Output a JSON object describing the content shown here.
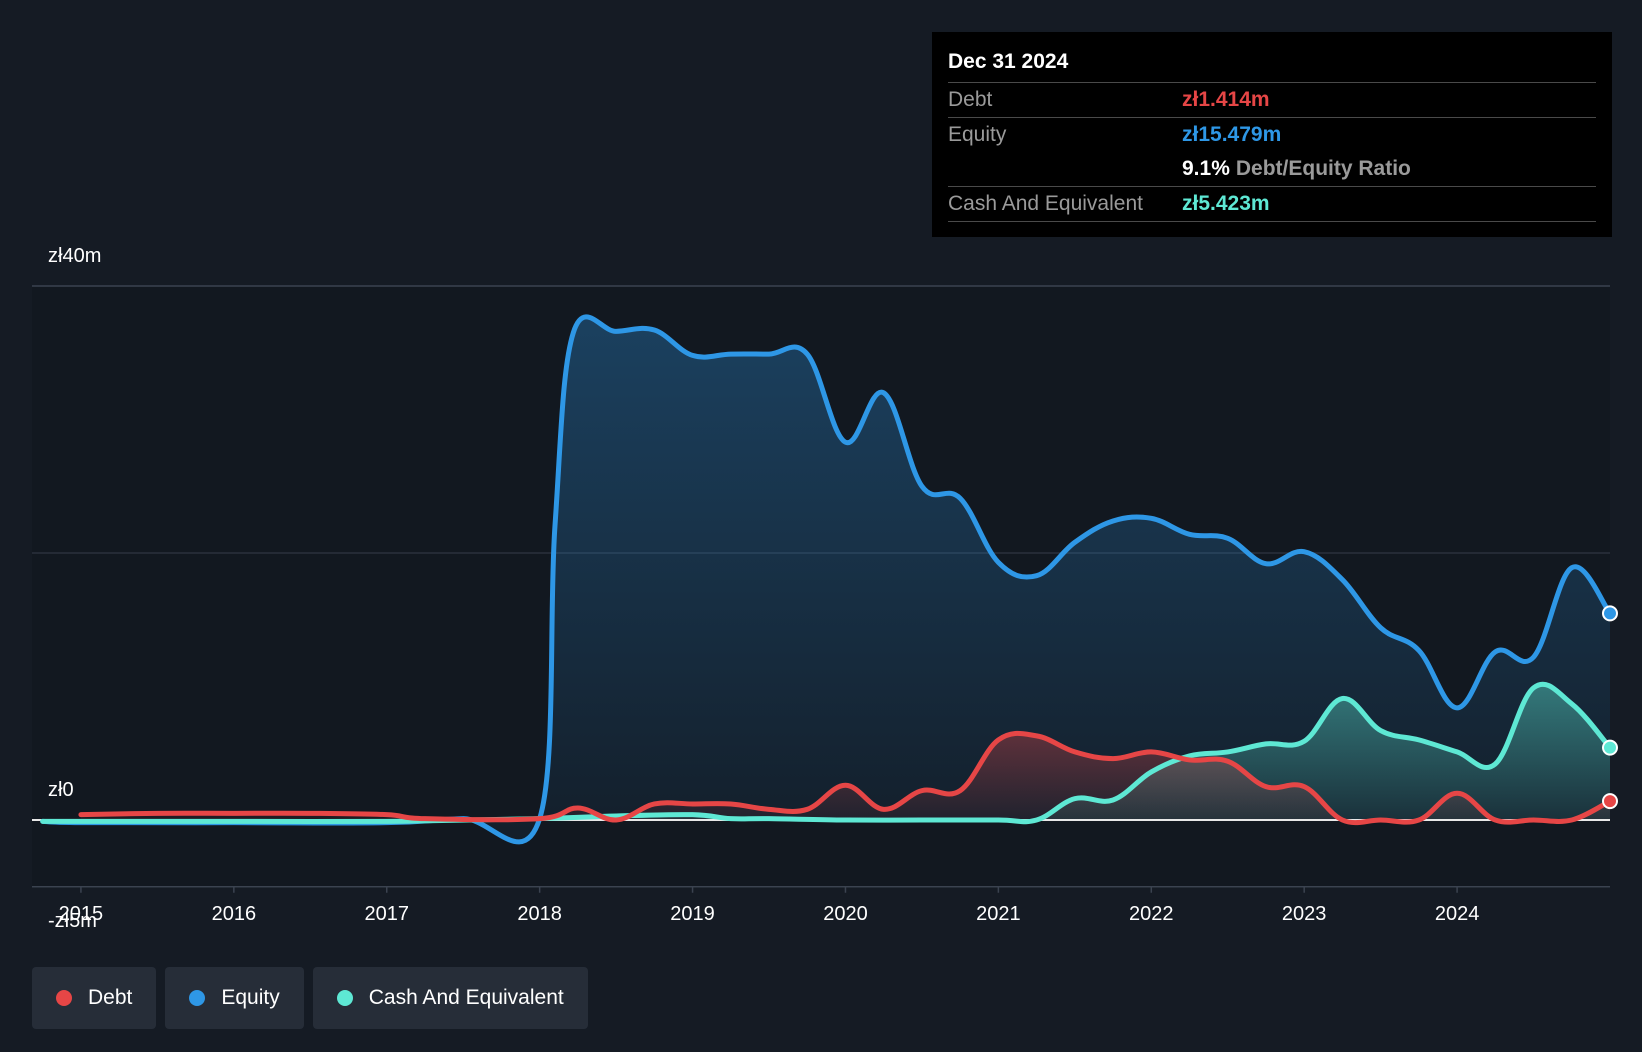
{
  "tooltip": {
    "date": "Dec 31 2024",
    "rows": [
      {
        "label": "Debt",
        "value": "zł1.414m",
        "color": "#e64646"
      },
      {
        "label": "Equity",
        "value": "zł15.479m",
        "color": "#2e97e6"
      },
      {
        "ratio_value": "9.1%",
        "ratio_label": "Debt/Equity Ratio"
      },
      {
        "label": "Cash And Equivalent",
        "value": "zł5.423m",
        "color": "#5ee8d4"
      }
    ]
  },
  "legend": [
    {
      "label": "Debt",
      "color": "#e64646"
    },
    {
      "label": "Equity",
      "color": "#2e97e6"
    },
    {
      "label": "Cash And Equivalent",
      "color": "#5ee8d4"
    }
  ],
  "chart_data": {
    "type": "area",
    "x_ticks": [
      "2015",
      "2016",
      "2017",
      "2018",
      "2019",
      "2020",
      "2021",
      "2022",
      "2023",
      "2024"
    ],
    "y_ticks": [
      "zł40m",
      "zł0",
      "-zł5m"
    ],
    "y_tick_values": [
      40,
      0,
      -5
    ],
    "ylim": [
      -5,
      40
    ],
    "xlim": [
      2014.68,
      2025.0
    ],
    "grid": true,
    "unit": "zł m",
    "series": [
      {
        "name": "Equity",
        "color": "#2e97e6",
        "points": [
          [
            2014.75,
            -0.1
          ],
          [
            2015.0,
            -0.2
          ],
          [
            2016.0,
            -0.2
          ],
          [
            2017.0,
            -0.2
          ],
          [
            2017.5,
            0.1
          ],
          [
            2018.0,
            0.1
          ],
          [
            2018.1,
            22.0
          ],
          [
            2018.22,
            36.5
          ],
          [
            2018.5,
            36.6
          ],
          [
            2018.75,
            36.7
          ],
          [
            2019.0,
            34.8
          ],
          [
            2019.25,
            34.9
          ],
          [
            2019.5,
            34.9
          ],
          [
            2019.75,
            34.9
          ],
          [
            2020.0,
            28.3
          ],
          [
            2020.25,
            32.0
          ],
          [
            2020.5,
            25.0
          ],
          [
            2020.75,
            24.1
          ],
          [
            2021.0,
            19.3
          ],
          [
            2021.25,
            18.3
          ],
          [
            2021.5,
            20.8
          ],
          [
            2021.75,
            22.4
          ],
          [
            2022.0,
            22.6
          ],
          [
            2022.25,
            21.4
          ],
          [
            2022.5,
            21.1
          ],
          [
            2022.75,
            19.2
          ],
          [
            2023.0,
            20.1
          ],
          [
            2023.25,
            18.0
          ],
          [
            2023.5,
            14.4
          ],
          [
            2023.75,
            12.7
          ],
          [
            2024.0,
            8.4
          ],
          [
            2024.25,
            12.6
          ],
          [
            2024.5,
            12.2
          ],
          [
            2024.75,
            18.9
          ],
          [
            2025.0,
            15.479
          ]
        ]
      },
      {
        "name": "Cash And Equivalent",
        "color": "#5ee8d4",
        "points": [
          [
            2014.75,
            -0.1
          ],
          [
            2015.0,
            -0.1
          ],
          [
            2016.0,
            -0.1
          ],
          [
            2017.0,
            -0.1
          ],
          [
            2018.0,
            0.1
          ],
          [
            2018.5,
            0.3
          ],
          [
            2019.0,
            0.4
          ],
          [
            2019.25,
            0.1
          ],
          [
            2019.5,
            0.1
          ],
          [
            2020.0,
            0.0
          ],
          [
            2020.5,
            0.0
          ],
          [
            2021.0,
            0.0
          ],
          [
            2021.25,
            0.0
          ],
          [
            2021.5,
            1.6
          ],
          [
            2021.75,
            1.5
          ],
          [
            2022.0,
            3.6
          ],
          [
            2022.25,
            4.8
          ],
          [
            2022.5,
            5.1
          ],
          [
            2022.75,
            5.7
          ],
          [
            2023.0,
            5.9
          ],
          [
            2023.25,
            9.1
          ],
          [
            2023.5,
            6.7
          ],
          [
            2023.75,
            6.0
          ],
          [
            2024.0,
            5.1
          ],
          [
            2024.25,
            4.2
          ],
          [
            2024.5,
            9.9
          ],
          [
            2024.75,
            8.7
          ],
          [
            2025.0,
            5.423
          ]
        ]
      },
      {
        "name": "Debt",
        "color": "#e64646",
        "points": [
          [
            2015.0,
            0.4
          ],
          [
            2015.5,
            0.5
          ],
          [
            2016.0,
            0.5
          ],
          [
            2016.5,
            0.5
          ],
          [
            2017.0,
            0.4
          ],
          [
            2017.25,
            0.1
          ],
          [
            2018.0,
            0.1
          ],
          [
            2018.25,
            0.9
          ],
          [
            2018.5,
            0.0
          ],
          [
            2018.75,
            1.2
          ],
          [
            2019.0,
            1.2
          ],
          [
            2019.25,
            1.2
          ],
          [
            2019.5,
            0.8
          ],
          [
            2019.75,
            0.8
          ],
          [
            2020.0,
            2.6
          ],
          [
            2020.25,
            0.8
          ],
          [
            2020.5,
            2.2
          ],
          [
            2020.75,
            2.2
          ],
          [
            2021.0,
            6.0
          ],
          [
            2021.25,
            6.3
          ],
          [
            2021.5,
            5.1
          ],
          [
            2021.75,
            4.6
          ],
          [
            2022.0,
            5.1
          ],
          [
            2022.25,
            4.5
          ],
          [
            2022.5,
            4.4
          ],
          [
            2022.75,
            2.5
          ],
          [
            2023.0,
            2.5
          ],
          [
            2023.25,
            0.0
          ],
          [
            2023.5,
            0.0
          ],
          [
            2023.75,
            0.0
          ],
          [
            2024.0,
            2.0
          ],
          [
            2024.25,
            0.0
          ],
          [
            2024.5,
            0.0
          ],
          [
            2024.75,
            0.0
          ],
          [
            2025.0,
            1.414
          ]
        ]
      }
    ]
  }
}
